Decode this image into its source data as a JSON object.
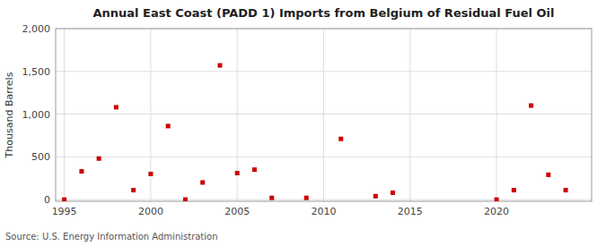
{
  "chart_data": {
    "type": "scatter",
    "title": "Annual East Coast (PADD 1) Imports from Belgium of Residual Fuel Oil",
    "y_label": "Thousand Barrels",
    "annotations": [
      "Source: U.S. Energy Information Administration"
    ],
    "color": "#cc0000",
    "marker": "square",
    "grid": true,
    "x": [
      1995,
      1996,
      1997,
      1998,
      1999,
      2000,
      2001,
      2002,
      2003,
      2004,
      2005,
      2006,
      2007,
      2009,
      2011,
      2013,
      2014,
      2020,
      2021,
      2022,
      2023,
      2024
    ],
    "values": [
      0,
      330,
      480,
      1080,
      110,
      300,
      860,
      0,
      200,
      1570,
      310,
      350,
      20,
      20,
      710,
      40,
      80,
      0,
      110,
      1100,
      290,
      110
    ],
    "xlim": [
      1994.5,
      2025.5
    ],
    "xticks": [
      1995,
      2000,
      2005,
      2010,
      2015,
      2020
    ],
    "ylim": [
      -20,
      2000
    ],
    "yticks": [
      0,
      500,
      {
        "value": 1000,
        "label": "1,000"
      },
      {
        "value": 1500,
        "label": "1,500"
      },
      {
        "value": 2000,
        "label": "2,000"
      }
    ]
  }
}
